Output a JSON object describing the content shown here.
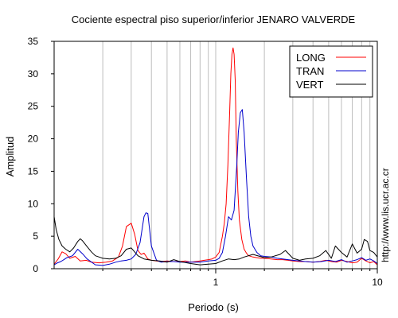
{
  "credit": "http://www.lis.ucr.ac.cr",
  "chart_data": {
    "type": "line",
    "title": "Cociente espectral piso superior/inferior  JENARO VALVERDE",
    "xlabel": "Periodo (s)",
    "ylabel": "Amplitud",
    "x_scale": "log",
    "xlim": [
      0.1,
      10
    ],
    "ylim": [
      0,
      35
    ],
    "grid": "vertical",
    "legend_position": "top-right",
    "x_tick_labels": [
      {
        "value": 1,
        "label": "1"
      },
      {
        "value": 10,
        "label": "10"
      }
    ],
    "y_ticks": [
      0,
      5,
      10,
      15,
      20,
      25,
      30,
      35
    ],
    "series": [
      {
        "name": "LONG",
        "color": "#ff0000",
        "x": [
          0.1,
          0.106,
          0.112,
          0.118,
          0.125,
          0.135,
          0.145,
          0.158,
          0.17,
          0.19,
          0.21,
          0.23,
          0.25,
          0.265,
          0.28,
          0.3,
          0.315,
          0.33,
          0.345,
          0.36,
          0.38,
          0.4,
          0.43,
          0.46,
          0.5,
          0.55,
          0.6,
          0.65,
          0.7,
          0.75,
          0.8,
          0.85,
          0.9,
          0.95,
          1.0,
          1.05,
          1.1,
          1.13,
          1.16,
          1.19,
          1.22,
          1.24,
          1.26,
          1.28,
          1.3,
          1.32,
          1.34,
          1.37,
          1.4,
          1.45,
          1.5,
          1.55,
          1.6,
          1.7,
          1.8,
          1.9,
          2.0,
          2.2,
          2.4,
          2.6,
          2.8,
          3.0,
          3.3,
          3.6,
          4.0,
          4.4,
          4.8,
          5.2,
          5.6,
          6.0,
          6.5,
          7.0,
          7.5,
          8.0,
          8.5,
          9.0,
          9.5,
          10.0
        ],
        "y": [
          0.7,
          1.5,
          2.6,
          2.3,
          1.6,
          1.9,
          1.2,
          1.3,
          1.0,
          0.9,
          1.0,
          1.2,
          1.8,
          3.5,
          6.5,
          7.0,
          5.3,
          2.8,
          2.2,
          2.4,
          1.5,
          1.3,
          1.2,
          1.1,
          1.2,
          1.1,
          1.1,
          1.2,
          1.0,
          1.1,
          1.2,
          1.3,
          1.4,
          1.5,
          1.8,
          2.5,
          5.0,
          7.0,
          10.0,
          16.0,
          24.0,
          30.0,
          33.0,
          34.0,
          33.0,
          29.0,
          20.0,
          12.0,
          7.5,
          4.5,
          3.0,
          2.4,
          2.0,
          1.8,
          1.7,
          1.6,
          1.6,
          1.5,
          1.4,
          1.4,
          1.3,
          1.2,
          1.1,
          1.1,
          1.0,
          1.1,
          1.3,
          1.1,
          1.0,
          1.3,
          1.1,
          0.9,
          1.0,
          1.6,
          1.2,
          0.9,
          1.1,
          0.6
        ]
      },
      {
        "name": "TRAN",
        "color": "#0000cc",
        "x": [
          0.1,
          0.105,
          0.11,
          0.115,
          0.12,
          0.13,
          0.14,
          0.15,
          0.16,
          0.18,
          0.2,
          0.22,
          0.24,
          0.26,
          0.28,
          0.3,
          0.32,
          0.34,
          0.35,
          0.36,
          0.37,
          0.38,
          0.4,
          0.43,
          0.46,
          0.5,
          0.55,
          0.6,
          0.7,
          0.8,
          0.9,
          1.0,
          1.05,
          1.1,
          1.15,
          1.2,
          1.25,
          1.3,
          1.35,
          1.38,
          1.42,
          1.46,
          1.5,
          1.55,
          1.6,
          1.65,
          1.7,
          1.8,
          1.9,
          2.0,
          2.2,
          2.4,
          2.6,
          2.8,
          3.0,
          3.3,
          3.6,
          4.0,
          4.5,
          5.0,
          5.5,
          6.0,
          6.5,
          7.0,
          7.5,
          8.0,
          8.5,
          9.0,
          9.5,
          10.0
        ],
        "y": [
          0.6,
          0.9,
          1.1,
          1.4,
          1.7,
          2.0,
          3.0,
          2.3,
          1.5,
          0.6,
          0.5,
          0.7,
          1.0,
          1.2,
          1.3,
          1.5,
          2.2,
          4.0,
          6.0,
          8.0,
          8.6,
          8.5,
          3.5,
          1.3,
          1.0,
          1.1,
          1.1,
          1.0,
          1.0,
          1.0,
          1.2,
          1.3,
          1.6,
          2.5,
          5.0,
          8.0,
          7.5,
          9.0,
          16.0,
          21.0,
          24.0,
          24.5,
          21.0,
          14.0,
          8.0,
          5.0,
          3.5,
          2.5,
          2.0,
          1.9,
          1.8,
          1.6,
          1.5,
          1.4,
          1.3,
          1.2,
          1.1,
          1.0,
          1.1,
          1.3,
          1.1,
          1.4,
          1.0,
          1.2,
          1.4,
          1.7,
          1.3,
          1.5,
          1.2,
          0.8
        ]
      },
      {
        "name": "VERT",
        "color": "#000000",
        "x": [
          0.1,
          0.103,
          0.107,
          0.112,
          0.118,
          0.125,
          0.132,
          0.14,
          0.145,
          0.15,
          0.16,
          0.17,
          0.18,
          0.2,
          0.22,
          0.24,
          0.26,
          0.28,
          0.3,
          0.33,
          0.36,
          0.4,
          0.45,
          0.5,
          0.55,
          0.6,
          0.7,
          0.8,
          0.9,
          1.0,
          1.1,
          1.2,
          1.3,
          1.4,
          1.5,
          1.7,
          2.0,
          2.2,
          2.5,
          2.7,
          3.0,
          3.3,
          3.6,
          4.0,
          4.4,
          4.8,
          5.2,
          5.5,
          6.0,
          6.5,
          7.0,
          7.5,
          8.0,
          8.3,
          8.7,
          9.0,
          9.5,
          10.0
        ],
        "y": [
          8.0,
          6.0,
          4.5,
          3.5,
          3.0,
          2.6,
          3.2,
          4.2,
          4.6,
          4.3,
          3.4,
          2.6,
          2.0,
          1.6,
          1.5,
          1.6,
          2.0,
          3.0,
          3.2,
          2.0,
          1.5,
          1.3,
          1.2,
          1.0,
          1.4,
          1.1,
          0.8,
          0.6,
          0.7,
          0.8,
          1.2,
          1.5,
          1.4,
          1.5,
          1.8,
          2.2,
          1.7,
          1.8,
          2.2,
          2.8,
          1.6,
          1.3,
          1.5,
          1.6,
          2.0,
          2.8,
          1.6,
          3.5,
          2.5,
          1.8,
          3.8,
          2.4,
          3.0,
          4.5,
          4.2,
          2.8,
          2.5,
          1.8
        ]
      }
    ]
  }
}
